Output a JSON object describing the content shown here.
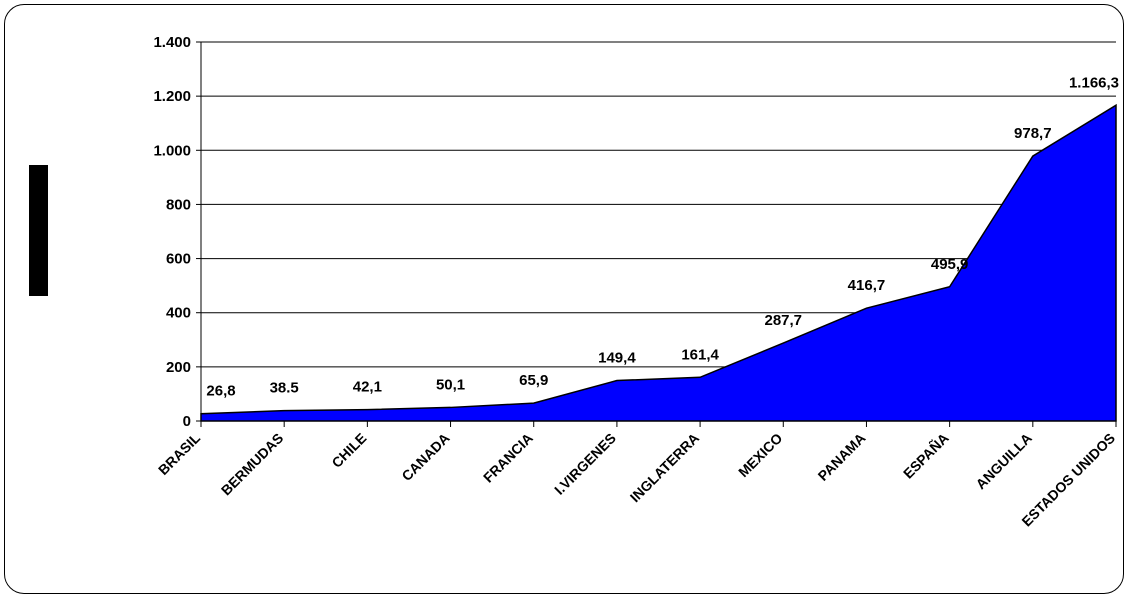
{
  "chart_data": {
    "type": "area",
    "categories": [
      "BRASIL",
      "BERMUDAS",
      "CHILE",
      "CANADA",
      "FRANCIA",
      "I.VIRGENES",
      "INGLATERRA",
      "MEXICO",
      "PANAMA",
      "ESPAÑA",
      "ANGUILLA",
      "ESTADOS UNIDOS"
    ],
    "values": [
      26.8,
      38.5,
      42.1,
      50.1,
      65.9,
      149.4,
      161.4,
      287.7,
      416.7,
      495.9,
      978.7,
      1166.3
    ],
    "data_labels": [
      "26,8",
      "38.5",
      "42,1",
      "50,1",
      "65,9",
      "149,4",
      "161,4",
      "287,7",
      "416,7",
      "495,9",
      "978,7",
      "1.166,3"
    ],
    "ylim": [
      0,
      1400
    ],
    "yticks": [
      0,
      200,
      400,
      600,
      800,
      1000,
      1200,
      1400
    ],
    "ytick_labels": [
      "0",
      "200",
      "400",
      "600",
      "800",
      "1.000",
      "1.200",
      "1.400"
    ],
    "grid": true,
    "fill_color": "#0000ff",
    "line_color": "#000000"
  }
}
